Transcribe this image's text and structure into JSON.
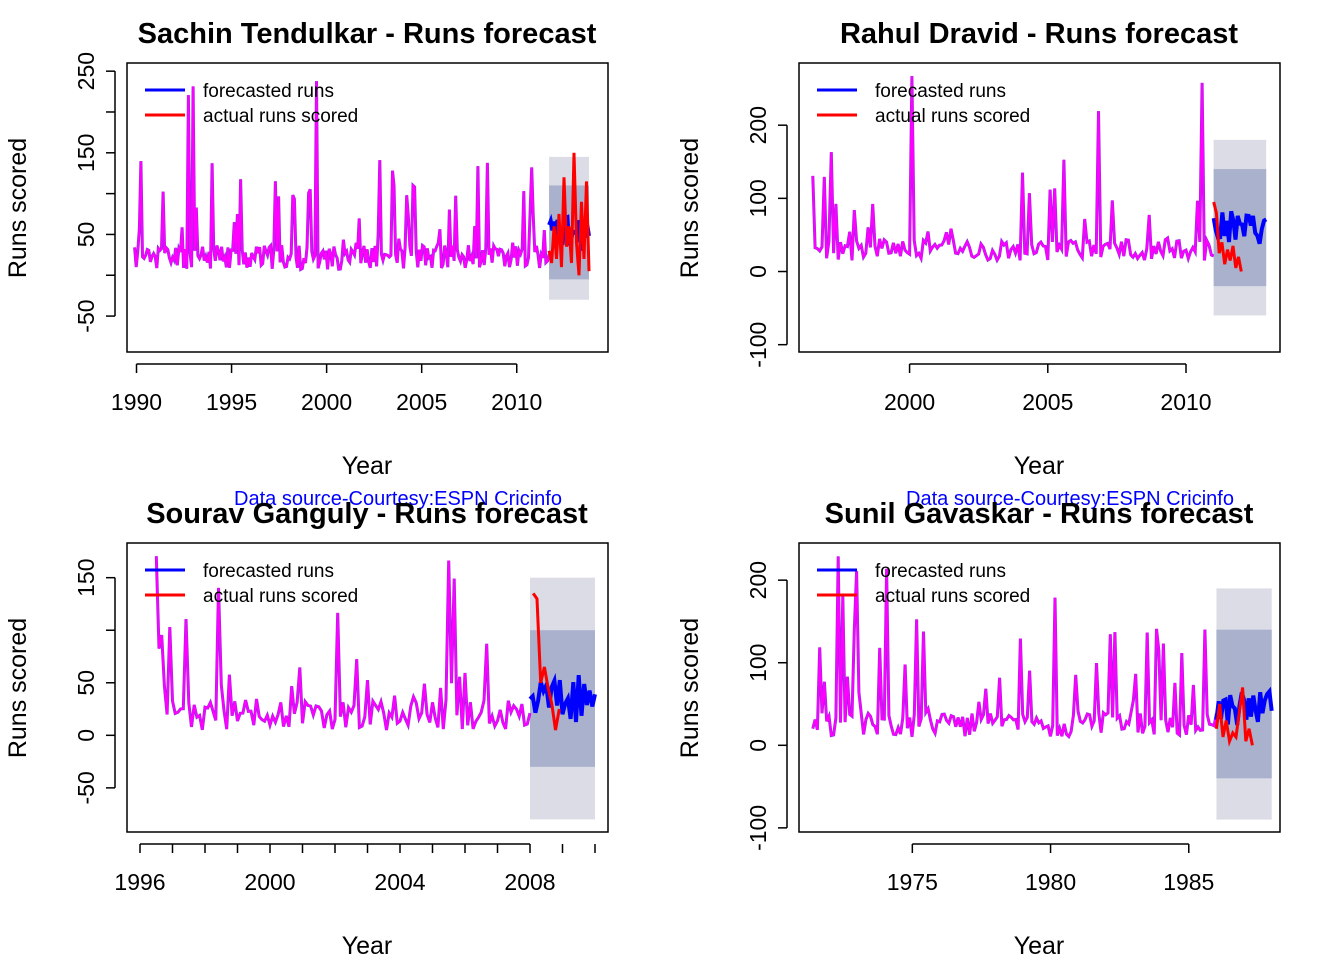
{
  "colors": {
    "forecast": "#0000ff",
    "actual": "#ff0000",
    "history": "#ff00ff",
    "band95": "#dcdce6",
    "band80": "#aab1cc"
  },
  "source_text": "Data source-Courtesy:ESPN Cricinfo",
  "chart_data": [
    {
      "type": "line",
      "title": "Sachin Tendulkar - Runs forecast",
      "xlabel": "Year",
      "ylabel": "Runs scored",
      "xlim": [
        1989.5,
        2014.8
      ],
      "ylim": [
        -94,
        260
      ],
      "xticks": [
        1990,
        1995,
        2000,
        2005,
        2010
      ],
      "yticks": [
        -50,
        50,
        150,
        250
      ],
      "yticks_minor": [
        0,
        100,
        200
      ],
      "ytick_rotated": true,
      "history_start": 1989.9,
      "history_end": 2011.7,
      "history_base": 22,
      "history_amp": 75,
      "history_peak": 240,
      "seed": 11,
      "forecast_start": 2011.7,
      "forecast_end": 2013.8,
      "forecast_level": 50,
      "band80": [
        -5,
        110
      ],
      "band95": [
        -30,
        145
      ],
      "actual_start": 2011.7,
      "actual_end": 2013.8,
      "actual_values": [
        30,
        15,
        60,
        20,
        75,
        10,
        120,
        35,
        60,
        15,
        150,
        40,
        0,
        90,
        20,
        115,
        5
      ],
      "legend": [
        "forecasted runs",
        "actual runs scored"
      ],
      "source_note": true
    },
    {
      "type": "line",
      "title": "Rahul Dravid - Runs forecast",
      "xlabel": "Year",
      "ylabel": "Runs scored",
      "xlim": [
        1996.0,
        2013.4
      ],
      "ylim": [
        -110,
        285
      ],
      "xticks": [
        2000,
        2005,
        2010
      ],
      "yticks": [
        -100,
        0,
        100,
        200
      ],
      "ytick_rotated": false,
      "history_start": 1996.5,
      "history_end": 2011.0,
      "history_base": 30,
      "history_amp": 80,
      "history_peak": 270,
      "seed": 23,
      "forecast_start": 2011.0,
      "forecast_end": 2012.9,
      "forecast_level": 60,
      "band80": [
        -20,
        140
      ],
      "band95": [
        -60,
        180
      ],
      "actual_start": 2011.0,
      "actual_end": 2012.0,
      "actual_values": [
        95,
        80,
        25,
        40,
        10,
        30,
        15,
        35,
        5,
        20,
        0
      ],
      "legend": [
        "forecasted runs",
        "actual runs scored"
      ],
      "source_note": true
    },
    {
      "type": "line",
      "title": "Sourav Ganguly - Runs forecast",
      "xlabel": "Year",
      "ylabel": "Runs scored",
      "xlim": [
        1995.6,
        2010.4
      ],
      "ylim": [
        -92,
        183
      ],
      "xticks": [
        1996,
        2000,
        2004,
        2008
      ],
      "yticks": [
        -50,
        0,
        50,
        150
      ],
      "yticks_minor": [
        100
      ],
      "ytick_rotated": true,
      "history_start": 1996.5,
      "history_end": 2008.0,
      "history_base": 20,
      "history_amp": 55,
      "history_peak": 178,
      "seed": 37,
      "forecast_start": 2008.0,
      "forecast_end": 2010.0,
      "forecast_level": 35,
      "band80": [
        -30,
        100
      ],
      "band95": [
        -80,
        150
      ],
      "actual_start": 2008.1,
      "actual_end": 2008.9,
      "actual_values": [
        135,
        130,
        50,
        65,
        45,
        30,
        5,
        25
      ],
      "legend": [
        "forecasted runs",
        "actual runs scored"
      ],
      "source_note": false
    },
    {
      "type": "line",
      "title": "Sunil Gavaskar - Runs forecast",
      "xlabel": "Year",
      "ylabel": "Runs scored",
      "xlim": [
        1970.9,
        1988.3
      ],
      "ylim": [
        -105,
        245
      ],
      "xticks": [
        1975,
        1980,
        1985
      ],
      "yticks": [
        -100,
        0,
        100,
        200
      ],
      "ytick_rotated": false,
      "history_start": 1971.4,
      "history_end": 1986.0,
      "history_base": 25,
      "history_amp": 85,
      "history_peak": 235,
      "seed": 51,
      "forecast_start": 1986.0,
      "forecast_end": 1988.0,
      "forecast_level": 45,
      "band80": [
        -40,
        140
      ],
      "band95": [
        -90,
        190
      ],
      "actual_start": 1986.0,
      "actual_end": 1987.3,
      "actual_values": [
        20,
        50,
        10,
        30,
        5,
        15,
        10,
        40,
        70,
        5,
        20,
        0
      ],
      "legend": [
        "forecasted runs",
        "actual runs scored"
      ],
      "source_note": false
    }
  ]
}
